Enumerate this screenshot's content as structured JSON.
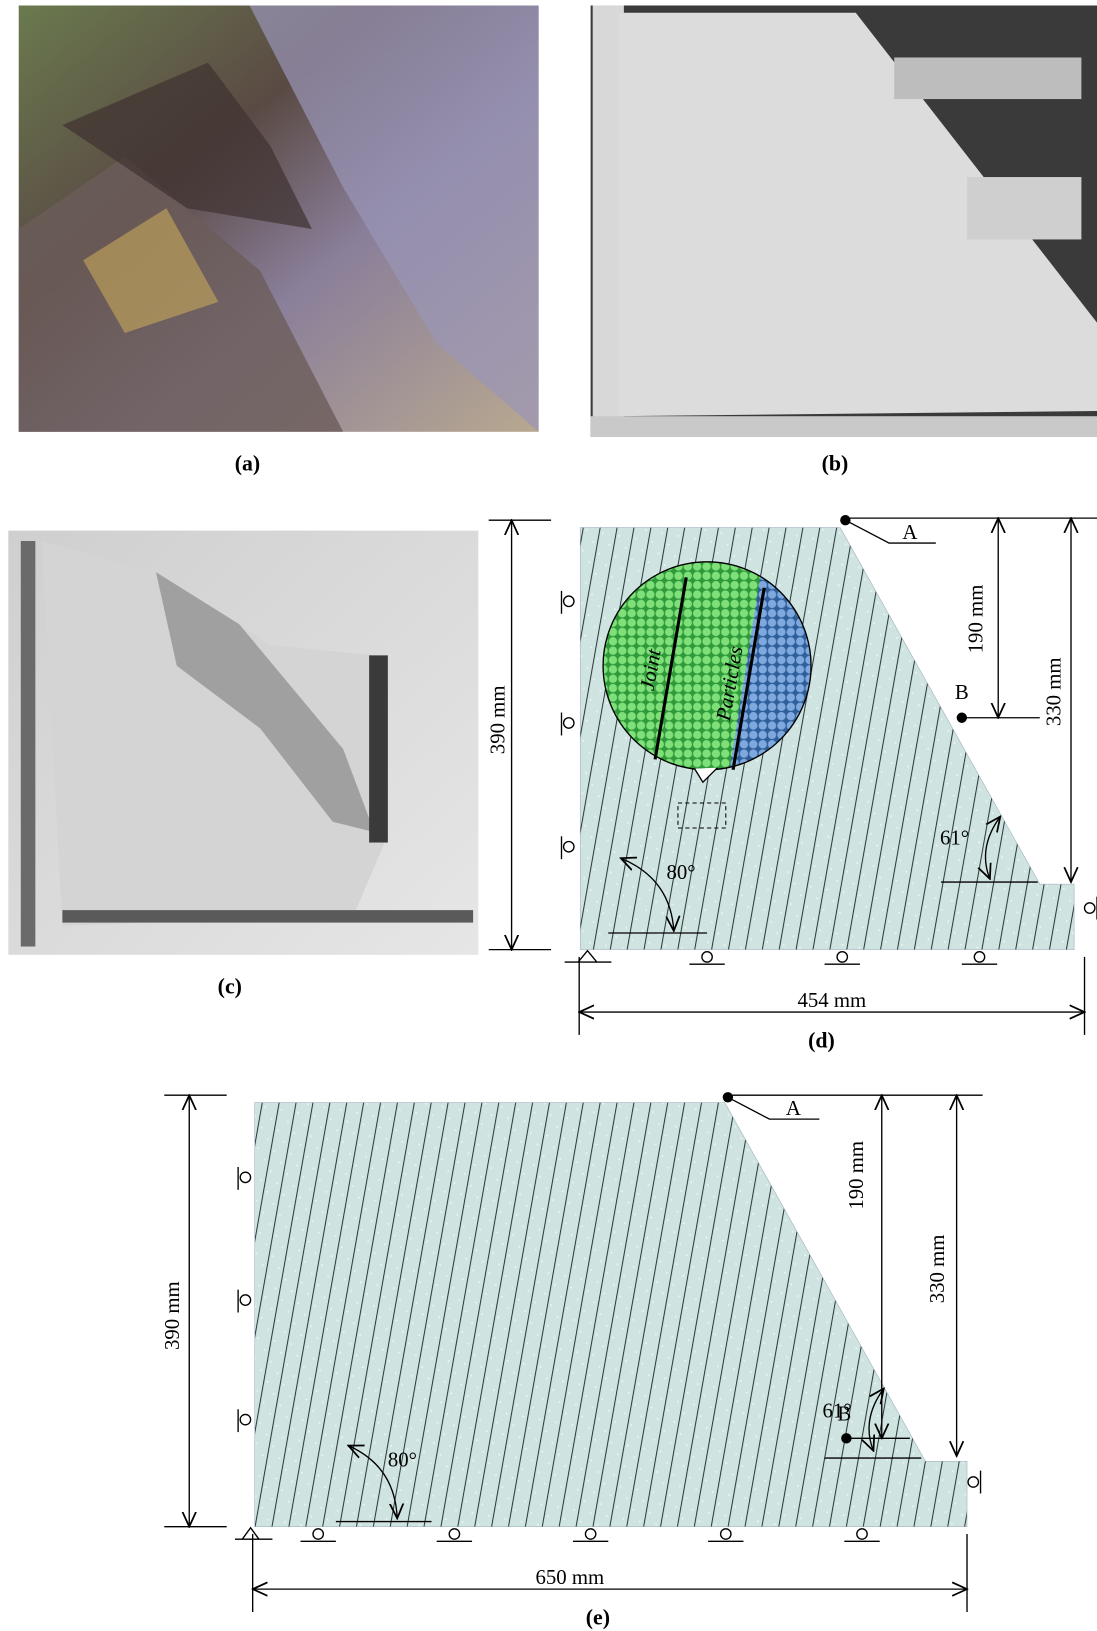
{
  "panels": [
    {
      "label": "(a)"
    },
    {
      "label": "(b)"
    },
    {
      "label": "(c)"
    },
    {
      "label": "(d)",
      "dimensions": {
        "height": "390 mm",
        "crest_to_b": "190 mm",
        "crest_to_toe": "330 mm",
        "width": "454 mm"
      },
      "points": [
        "A",
        "B"
      ],
      "angles": [
        "61°",
        "80°"
      ],
      "inset": [
        "Joint",
        "Particles"
      ]
    },
    {
      "label": "(e)",
      "dimensions": {
        "height": "390 mm",
        "crest_to_b": "190 mm",
        "crest_to_toe": "330 mm",
        "width": "650 mm"
      },
      "points": [
        "A",
        "B"
      ],
      "angles": [
        "61°",
        "80°"
      ]
    }
  ]
}
